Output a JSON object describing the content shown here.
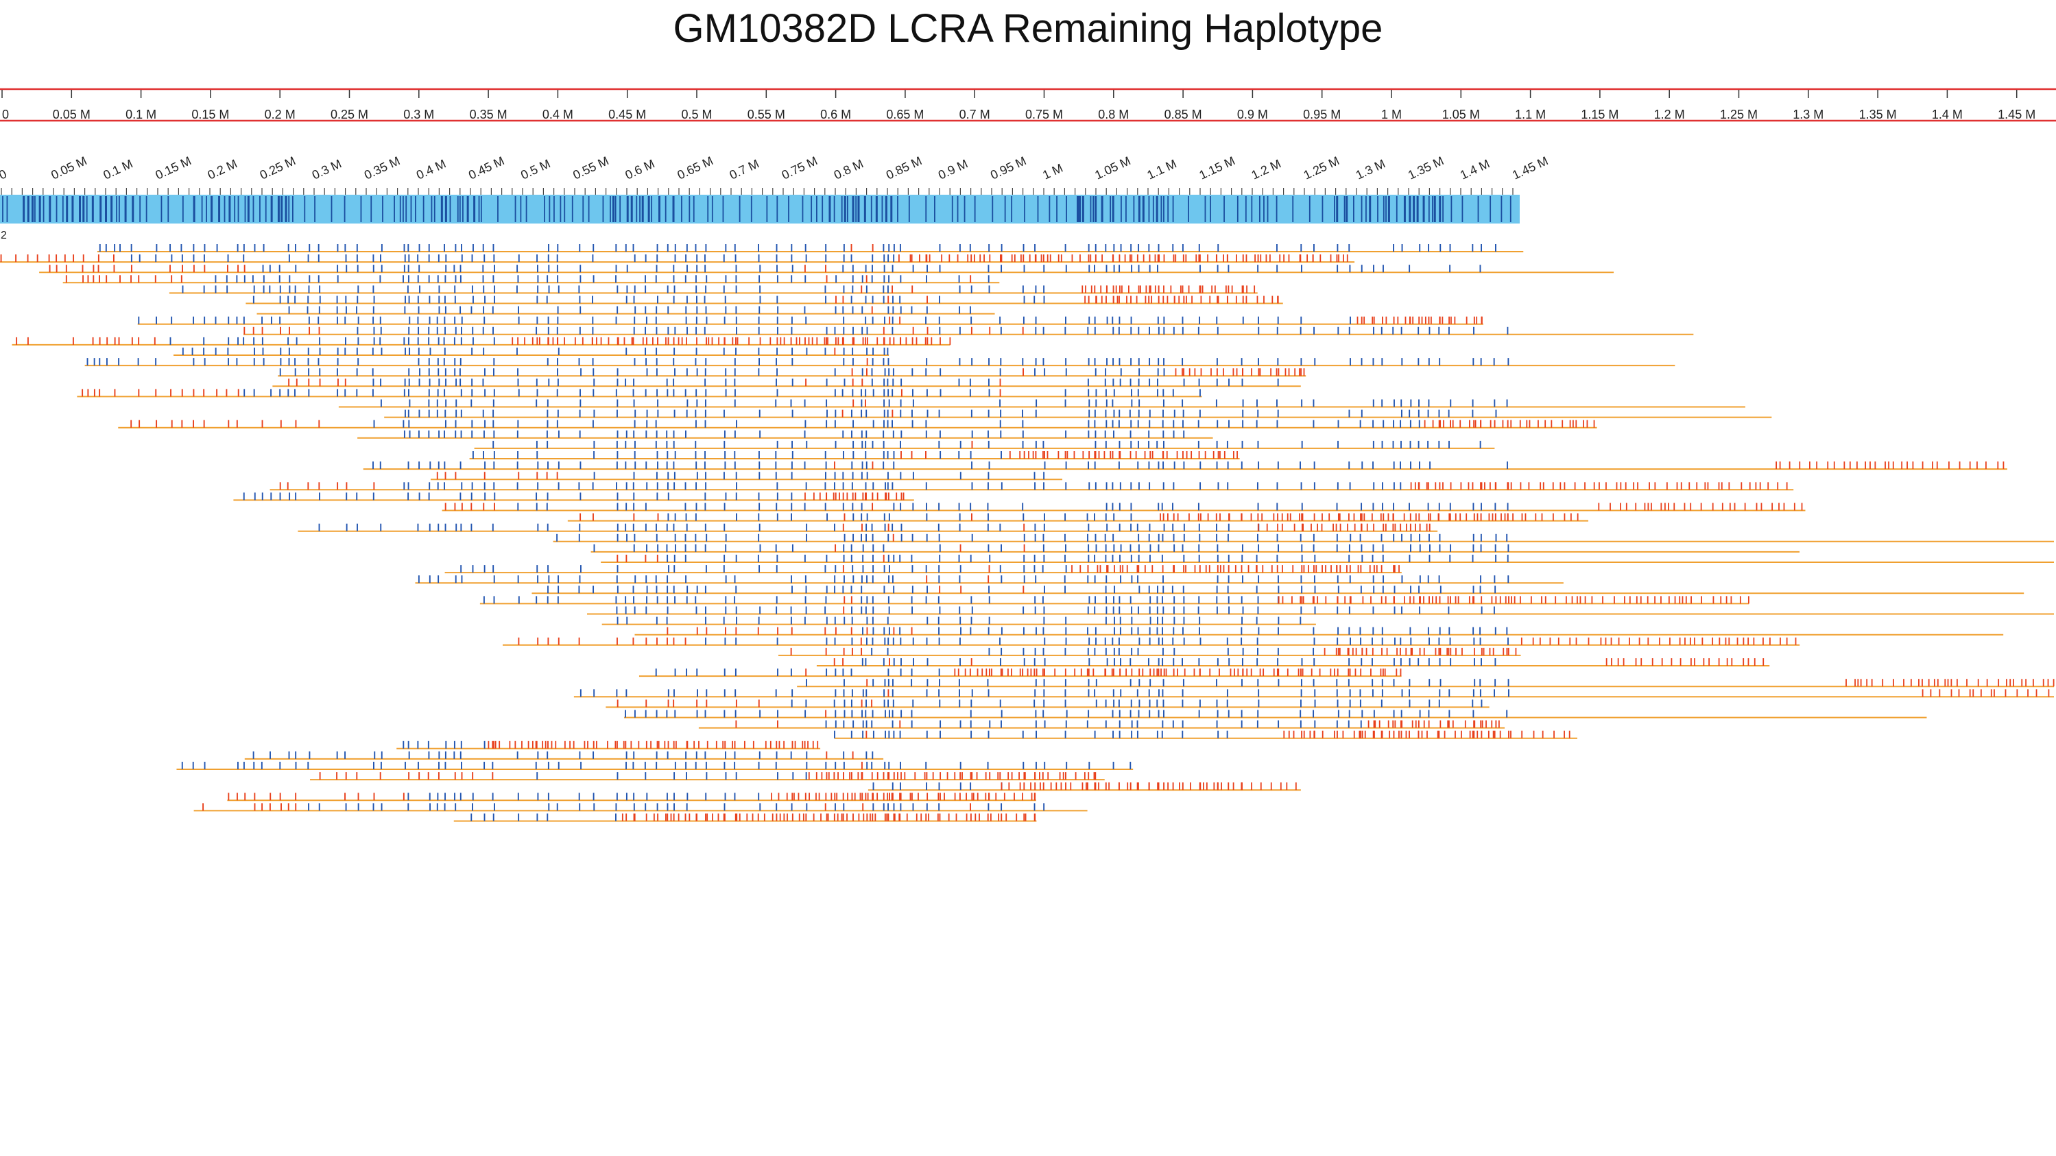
{
  "title": "GM10382D LCRA Remaining Haplotype",
  "top_ruler": {
    "ticks": [
      "0",
      "0.05 M",
      "0.1 M",
      "0.15 M",
      "0.2 M",
      "0.25 M",
      "0.3 M",
      "0.35 M",
      "0.4 M",
      "0.45 M",
      "0.5 M",
      "0.55 M",
      "0.6 M",
      "0.65 M",
      "0.7 M",
      "0.75 M",
      "0.8 M",
      "0.85 M",
      "0.9 M",
      "0.95 M",
      "1 M",
      "1.05 M",
      "1.1 M",
      "1.15 M",
      "1.2 M",
      "1.25 M",
      "1.3 M",
      "1.35 M",
      "1.4 M",
      "1.45 M"
    ],
    "range_mb": [
      0,
      1.475
    ]
  },
  "reference_map": {
    "ticks": [
      "0",
      "0.05 M",
      "0.1 M",
      "0.15 M",
      "0.2 M",
      "0.25 M",
      "0.3 M",
      "0.35 M",
      "0.4 M",
      "0.45 M",
      "0.5 M",
      "0.55 M",
      "0.6 M",
      "0.65 M",
      "0.7 M",
      "0.75 M",
      "0.8 M",
      "0.85 M",
      "0.9 M",
      "0.95 M",
      "1 M",
      "1.05 M",
      "1.1 M",
      "1.15 M",
      "1.2 M",
      "1.25 M",
      "1.3 M",
      "1.35 M",
      "1.4 M",
      "1.45 M"
    ],
    "length_mb": 1.455,
    "label": "2"
  },
  "alignments": {
    "molecule_count": 56,
    "colors": {
      "ruler_border": "#e03131",
      "ruler_text": "#222222",
      "map_fill": "#6ec6ee",
      "map_site": "#1b4fa0",
      "molecule_line": "#f0a030",
      "aligned_site": "#2255b0",
      "unaligned_site": "#e8401c"
    }
  }
}
